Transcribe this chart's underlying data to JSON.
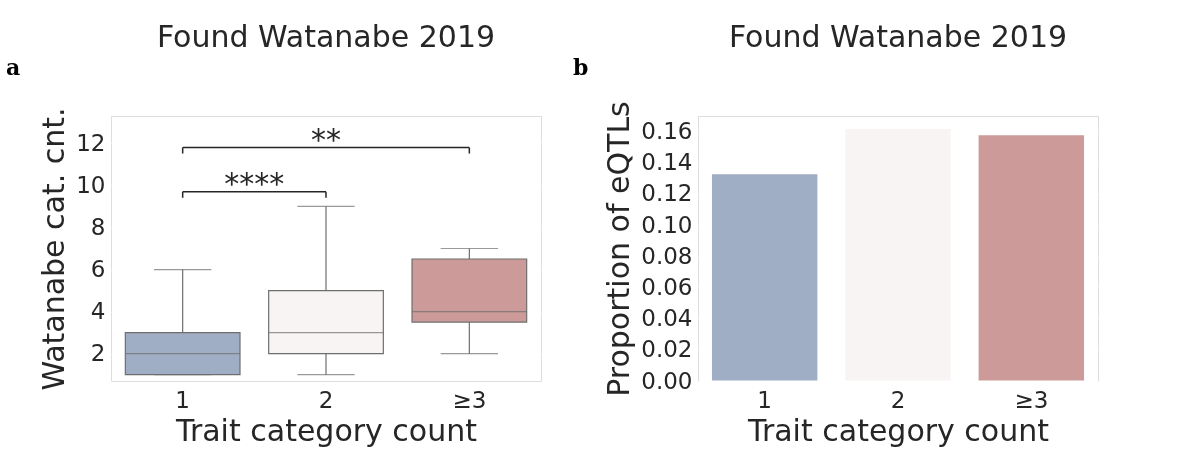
{
  "chart_data": [
    {
      "type": "box",
      "title": "Found Watanabe 2019",
      "xlabel": "Trait category count",
      "ylabel": "Watanabe cat. cnt.",
      "categories": [
        "1",
        "2",
        "≥3"
      ],
      "colors": [
        "#a0aec5",
        "#f8f4f3",
        "#cb9a99"
      ],
      "boxes": [
        {
          "low": 1,
          "q1": 1,
          "median": 2,
          "q3": 3,
          "high": 6
        },
        {
          "low": 1,
          "q1": 2,
          "median": 3,
          "q3": 5,
          "high": 9
        },
        {
          "low": 2,
          "q1": 3.5,
          "median": 4,
          "q3": 6.5,
          "high": 7
        }
      ],
      "ylim": [
        0.7,
        13.3
      ],
      "yticks": [
        2,
        4,
        6,
        8,
        10,
        12
      ],
      "grid": "y",
      "annotations": [
        "a",
        "**",
        "****"
      ]
    },
    {
      "type": "bar",
      "title": "Found Watanabe 2019",
      "xlabel": "Trait category count",
      "ylabel": "Proportion of eQTLs",
      "categories": [
        "1",
        "2",
        "≥3"
      ],
      "values": [
        0.133,
        0.162,
        0.158
      ],
      "colors": [
        "#a0aec5",
        "#f8f4f3",
        "#cb9a99"
      ],
      "ylim": [
        0,
        0.17
      ],
      "yticks": [
        {
          "value": 0,
          "label": "0.00"
        },
        {
          "value": 0.02,
          "label": "0.02"
        },
        {
          "value": 0.04,
          "label": "0.04"
        },
        {
          "value": 0.06,
          "label": "0.06"
        },
        {
          "value": 0.08,
          "label": "0.08"
        },
        {
          "value": 0.1,
          "label": "0.10"
        },
        {
          "value": 0.12,
          "label": "0.12"
        },
        {
          "value": 0.14,
          "label": "0.14"
        },
        {
          "value": 0.16,
          "label": "0.16"
        }
      ],
      "grid": "y",
      "annotations": [
        "b"
      ]
    }
  ]
}
